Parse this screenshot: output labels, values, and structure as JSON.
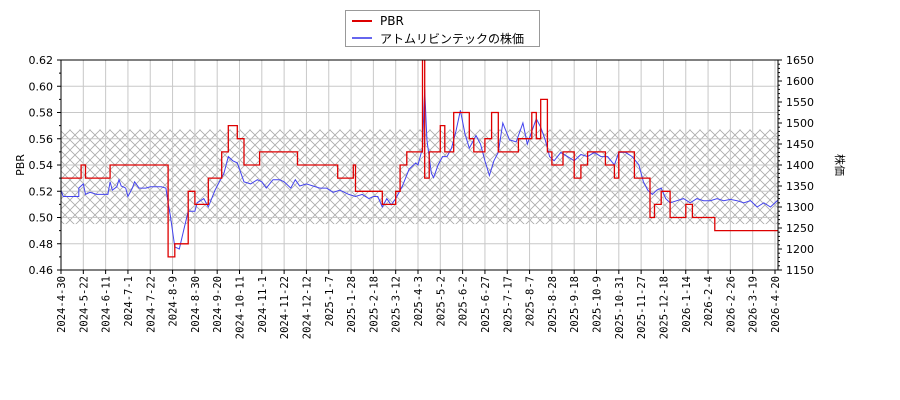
{
  "chart_data": {
    "type": "line",
    "title": "",
    "legend": {
      "position": "top-center",
      "entries": [
        {
          "label": "PBR",
          "color": "#dd0000"
        },
        {
          "label": "アトムリビンテックの株価",
          "color": "#4444ee"
        }
      ]
    },
    "xlabel": "",
    "ylabel_left": "PBR",
    "ylabel_right": "株価",
    "ylim_left": [
      0.46,
      0.62
    ],
    "ylim_right": [
      1150,
      1650
    ],
    "yticks_left": [
      "0.46",
      "0.48",
      "0.50",
      "0.52",
      "0.54",
      "0.56",
      "0.58",
      "0.60",
      "0.62"
    ],
    "yticks_right": [
      "1150",
      "1200",
      "1250",
      "1300",
      "1350",
      "1400",
      "1450",
      "1500",
      "1550",
      "1600",
      "1650"
    ],
    "xticks": [
      "2024-4-30",
      "2024-5-22",
      "2024-6-11",
      "2024-7-1",
      "2024-7-22",
      "2024-8-9",
      "2024-8-30",
      "2024-9-20",
      "2024-10-11",
      "2024-11-1",
      "2024-11-22",
      "2024-12-12",
      "2025-1-7",
      "2025-1-28",
      "2025-2-18",
      "2025-3-12",
      "2025-4-3",
      "2025-5-2",
      "2025-6-2",
      "2025-6-27",
      "2025-7-17",
      "2025-8-7",
      "2025-8-28",
      "2025-9-18",
      "2025-10-9",
      "2025-10-31",
      "2025-11-27",
      "2025-12-18",
      "2026-1-14",
      "2026-2-4",
      "2026-2-26",
      "2026-3-19",
      "2026-4-20"
    ],
    "grid": true,
    "hatch_band_pbr": [
      0.495,
      0.567
    ],
    "series": [
      {
        "name": "PBR",
        "axis": "left",
        "color": "#dd0000",
        "points": [
          [
            0,
            0.53
          ],
          [
            0.5,
            0.53
          ],
          [
            0.5,
            0.53
          ],
          [
            0.9,
            0.53
          ],
          [
            0.9,
            0.54
          ],
          [
            1.1,
            0.54
          ],
          [
            1.1,
            0.53
          ],
          [
            2.2,
            0.53
          ],
          [
            2.2,
            0.54
          ],
          [
            4.8,
            0.54
          ],
          [
            4.8,
            0.47
          ],
          [
            5.1,
            0.47
          ],
          [
            5.1,
            0.48
          ],
          [
            5.7,
            0.48
          ],
          [
            5.7,
            0.52
          ],
          [
            6.0,
            0.52
          ],
          [
            6.0,
            0.51
          ],
          [
            6.6,
            0.51
          ],
          [
            6.6,
            0.53
          ],
          [
            7.2,
            0.53
          ],
          [
            7.2,
            0.55
          ],
          [
            7.5,
            0.55
          ],
          [
            7.5,
            0.57
          ],
          [
            7.9,
            0.57
          ],
          [
            7.9,
            0.56
          ],
          [
            8.2,
            0.56
          ],
          [
            8.2,
            0.54
          ],
          [
            8.9,
            0.54
          ],
          [
            8.9,
            0.55
          ],
          [
            10.6,
            0.55
          ],
          [
            10.6,
            0.54
          ],
          [
            12.4,
            0.54
          ],
          [
            12.4,
            0.53
          ],
          [
            13.1,
            0.53
          ],
          [
            13.1,
            0.54
          ],
          [
            13.2,
            0.54
          ],
          [
            13.2,
            0.52
          ],
          [
            14.4,
            0.52
          ],
          [
            14.4,
            0.51
          ],
          [
            15.0,
            0.51
          ],
          [
            15.0,
            0.52
          ],
          [
            15.2,
            0.52
          ],
          [
            15.2,
            0.54
          ],
          [
            15.5,
            0.54
          ],
          [
            15.5,
            0.55
          ],
          [
            16.2,
            0.55
          ],
          [
            16.2,
            0.63
          ],
          [
            16.3,
            0.63
          ],
          [
            16.3,
            0.53
          ],
          [
            16.5,
            0.53
          ],
          [
            16.5,
            0.55
          ],
          [
            17.0,
            0.55
          ],
          [
            17.0,
            0.57
          ],
          [
            17.2,
            0.57
          ],
          [
            17.2,
            0.55
          ],
          [
            17.6,
            0.55
          ],
          [
            17.6,
            0.58
          ],
          [
            18.3,
            0.58
          ],
          [
            18.3,
            0.56
          ],
          [
            18.5,
            0.56
          ],
          [
            18.5,
            0.55
          ],
          [
            19.0,
            0.55
          ],
          [
            19.0,
            0.56
          ],
          [
            19.3,
            0.56
          ],
          [
            19.3,
            0.58
          ],
          [
            19.6,
            0.58
          ],
          [
            19.6,
            0.55
          ],
          [
            20.5,
            0.55
          ],
          [
            20.5,
            0.56
          ],
          [
            21.1,
            0.56
          ],
          [
            21.1,
            0.58
          ],
          [
            21.3,
            0.58
          ],
          [
            21.3,
            0.56
          ],
          [
            21.5,
            0.56
          ],
          [
            21.5,
            0.59
          ],
          [
            21.8,
            0.59
          ],
          [
            21.8,
            0.55
          ],
          [
            22.0,
            0.55
          ],
          [
            22.0,
            0.54
          ],
          [
            22.5,
            0.54
          ],
          [
            22.5,
            0.55
          ],
          [
            23.0,
            0.55
          ],
          [
            23.0,
            0.53
          ],
          [
            23.3,
            0.53
          ],
          [
            23.3,
            0.54
          ],
          [
            23.6,
            0.54
          ],
          [
            23.6,
            0.55
          ],
          [
            24.4,
            0.55
          ],
          [
            24.4,
            0.54
          ],
          [
            24.8,
            0.54
          ],
          [
            24.8,
            0.53
          ],
          [
            25.0,
            0.53
          ],
          [
            25.0,
            0.55
          ],
          [
            25.7,
            0.55
          ],
          [
            25.7,
            0.53
          ],
          [
            26.4,
            0.53
          ],
          [
            26.4,
            0.5
          ],
          [
            26.6,
            0.5
          ],
          [
            26.6,
            0.51
          ],
          [
            26.9,
            0.51
          ],
          [
            26.9,
            0.52
          ],
          [
            27.3,
            0.52
          ],
          [
            27.3,
            0.5
          ],
          [
            28.0,
            0.5
          ],
          [
            28.0,
            0.51
          ],
          [
            28.3,
            0.51
          ],
          [
            28.3,
            0.5
          ],
          [
            29.3,
            0.5
          ],
          [
            29.3,
            0.49
          ],
          [
            33.0,
            0.49
          ]
        ]
      },
      {
        "name": "アトムリビンテックの株価",
        "axis": "right",
        "color": "#4444ee",
        "points": [
          [
            0,
            1340
          ],
          [
            0.1,
            1325
          ],
          [
            0.8,
            1325
          ],
          [
            0.8,
            1345
          ],
          [
            1.0,
            1355
          ],
          [
            1.1,
            1330
          ],
          [
            1.3,
            1335
          ],
          [
            1.6,
            1330
          ],
          [
            2.1,
            1330
          ],
          [
            2.2,
            1360
          ],
          [
            2.3,
            1340
          ],
          [
            2.5,
            1348
          ],
          [
            2.6,
            1365
          ],
          [
            2.7,
            1350
          ],
          [
            2.9,
            1345
          ],
          [
            3.0,
            1325
          ],
          [
            3.2,
            1345
          ],
          [
            3.3,
            1360
          ],
          [
            3.5,
            1345
          ],
          [
            3.8,
            1345
          ],
          [
            4.0,
            1348
          ],
          [
            4.5,
            1348
          ],
          [
            4.7,
            1345
          ],
          [
            4.8,
            1310
          ],
          [
            4.9,
            1280
          ],
          [
            5.1,
            1205
          ],
          [
            5.3,
            1200
          ],
          [
            5.5,
            1245
          ],
          [
            5.7,
            1290
          ],
          [
            6.0,
            1290
          ],
          [
            6.1,
            1310
          ],
          [
            6.4,
            1320
          ],
          [
            6.6,
            1300
          ],
          [
            6.9,
            1340
          ],
          [
            7.1,
            1360
          ],
          [
            7.3,
            1380
          ],
          [
            7.5,
            1420
          ],
          [
            7.7,
            1410
          ],
          [
            7.9,
            1405
          ],
          [
            8.0,
            1390
          ],
          [
            8.2,
            1360
          ],
          [
            8.5,
            1355
          ],
          [
            8.8,
            1365
          ],
          [
            9.0,
            1360
          ],
          [
            9.2,
            1345
          ],
          [
            9.5,
            1365
          ],
          [
            9.8,
            1365
          ],
          [
            10.0,
            1360
          ],
          [
            10.3,
            1345
          ],
          [
            10.5,
            1365
          ],
          [
            10.7,
            1350
          ],
          [
            11.0,
            1355
          ],
          [
            11.3,
            1350
          ],
          [
            11.6,
            1345
          ],
          [
            11.9,
            1345
          ],
          [
            12.2,
            1335
          ],
          [
            12.5,
            1340
          ],
          [
            12.9,
            1330
          ],
          [
            13.2,
            1325
          ],
          [
            13.5,
            1330
          ],
          [
            13.8,
            1320
          ],
          [
            14.0,
            1325
          ],
          [
            14.2,
            1325
          ],
          [
            14.4,
            1300
          ],
          [
            14.6,
            1320
          ],
          [
            14.8,
            1305
          ],
          [
            15.0,
            1320
          ],
          [
            15.3,
            1350
          ],
          [
            15.6,
            1390
          ],
          [
            15.9,
            1405
          ],
          [
            16.0,
            1400
          ],
          [
            16.1,
            1420
          ],
          [
            16.2,
            1440
          ],
          [
            16.3,
            1580
          ],
          [
            16.4,
            1460
          ],
          [
            16.6,
            1380
          ],
          [
            16.7,
            1370
          ],
          [
            16.9,
            1400
          ],
          [
            17.1,
            1420
          ],
          [
            17.3,
            1420
          ],
          [
            17.5,
            1440
          ],
          [
            17.7,
            1480
          ],
          [
            17.9,
            1530
          ],
          [
            18.1,
            1475
          ],
          [
            18.3,
            1440
          ],
          [
            18.6,
            1470
          ],
          [
            18.8,
            1450
          ],
          [
            19.0,
            1410
          ],
          [
            19.2,
            1375
          ],
          [
            19.4,
            1410
          ],
          [
            19.6,
            1430
          ],
          [
            19.8,
            1500
          ],
          [
            20.1,
            1460
          ],
          [
            20.4,
            1455
          ],
          [
            20.7,
            1500
          ],
          [
            20.9,
            1450
          ],
          [
            21.1,
            1480
          ],
          [
            21.3,
            1510
          ],
          [
            21.5,
            1490
          ],
          [
            21.7,
            1460
          ],
          [
            21.9,
            1420
          ],
          [
            22.1,
            1410
          ],
          [
            22.4,
            1430
          ],
          [
            22.7,
            1420
          ],
          [
            23.0,
            1410
          ],
          [
            23.3,
            1425
          ],
          [
            23.6,
            1420
          ],
          [
            23.9,
            1430
          ],
          [
            24.2,
            1420
          ],
          [
            24.5,
            1420
          ],
          [
            24.8,
            1400
          ],
          [
            25.0,
            1430
          ],
          [
            25.3,
            1430
          ],
          [
            25.6,
            1420
          ],
          [
            25.9,
            1400
          ],
          [
            26.1,
            1360
          ],
          [
            26.3,
            1340
          ],
          [
            26.5,
            1330
          ],
          [
            26.7,
            1340
          ],
          [
            26.9,
            1345
          ],
          [
            27.1,
            1320
          ],
          [
            27.3,
            1310
          ],
          [
            27.6,
            1315
          ],
          [
            27.9,
            1320
          ],
          [
            28.2,
            1310
          ],
          [
            28.5,
            1320
          ],
          [
            28.8,
            1315
          ],
          [
            29.1,
            1315
          ],
          [
            29.4,
            1320
          ],
          [
            29.7,
            1315
          ],
          [
            30.0,
            1318
          ],
          [
            30.3,
            1315
          ],
          [
            30.6,
            1310
          ],
          [
            30.9,
            1315
          ],
          [
            31.2,
            1300
          ],
          [
            31.5,
            1310
          ],
          [
            31.8,
            1300
          ],
          [
            32.1,
            1315
          ],
          [
            32.4,
            1300
          ],
          [
            32.7,
            1305
          ],
          [
            33.0,
            1310
          ]
        ]
      }
    ]
  },
  "legend": {
    "pbr_label": "PBR",
    "price_label": "アトムリビンテックの株価"
  },
  "axes": {
    "left_label": "PBR",
    "right_label": "株価"
  }
}
